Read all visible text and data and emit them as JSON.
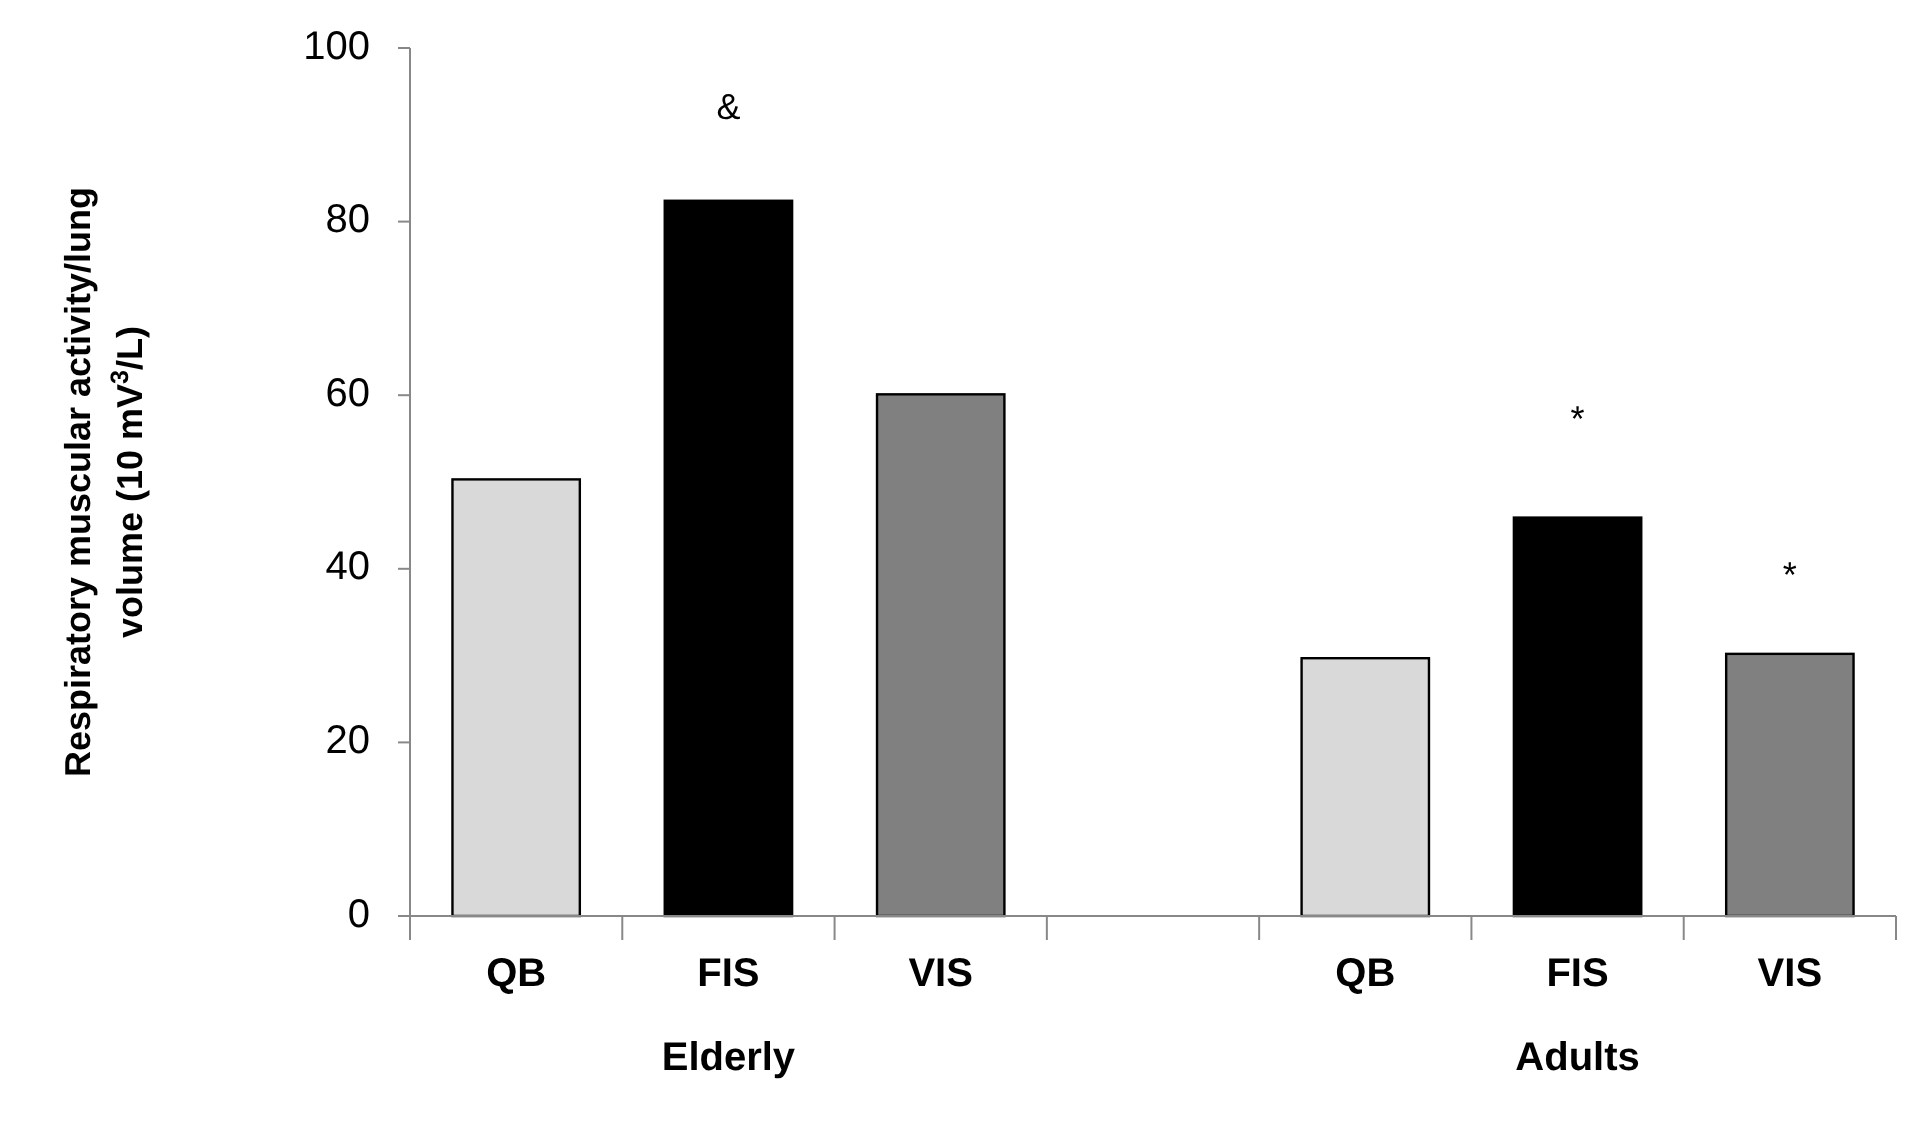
{
  "chart_data": {
    "type": "bar",
    "ylabel": "Respiratory muscular activity/lung volume (10 mV$^{3}$/L)",
    "categories": [
      "QB",
      "FIS",
      "VIS",
      null,
      "QB",
      "FIS",
      "VIS"
    ],
    "values": [
      50.3,
      82.4,
      60.1,
      null,
      29.7,
      45.9,
      30.2
    ],
    "colors": [
      "#d9d9d9",
      "#000000",
      "#808080",
      null,
      "#d9d9d9",
      "#000000",
      "#808080"
    ],
    "ylim": [
      0,
      100
    ],
    "yticks": [
      0,
      20,
      40,
      60,
      80,
      100
    ],
    "annotations": [
      "&",
      "*",
      "*",
      "Elderly",
      "Adults"
    ]
  }
}
